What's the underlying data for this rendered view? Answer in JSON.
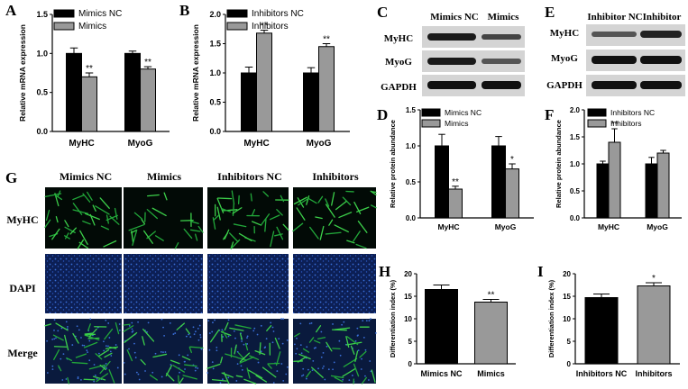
{
  "figure": {
    "panel_letters": [
      "A",
      "B",
      "C",
      "D",
      "E",
      "F",
      "G",
      "H",
      "I"
    ]
  },
  "chart_data": [
    {
      "id": "A",
      "type": "bar",
      "categories": [
        "MyHC",
        "MyoG"
      ],
      "series": [
        {
          "name": "Mimics NC",
          "values": [
            1.0,
            1.0
          ],
          "errors": [
            0.07,
            0.03
          ],
          "color": "#000000"
        },
        {
          "name": "Mimics",
          "values": [
            0.7,
            0.8
          ],
          "errors": [
            0.05,
            0.03
          ],
          "color": "#999999"
        }
      ],
      "significance": [
        [
          "",
          ""
        ],
        [
          "**",
          "**"
        ]
      ],
      "ylabel": "Relative mRNA expression",
      "ylim": [
        0,
        1.5
      ],
      "yticks": [
        "0.0",
        "0.5",
        "1.0",
        "1.5"
      ],
      "legend": "top-left"
    },
    {
      "id": "B",
      "type": "bar",
      "categories": [
        "MyHC",
        "MyoG"
      ],
      "series": [
        {
          "name": "Inhibitors NC",
          "values": [
            1.0,
            1.0
          ],
          "errors": [
            0.1,
            0.09
          ],
          "color": "#000000"
        },
        {
          "name": "Inhibitors",
          "values": [
            1.68,
            1.45
          ],
          "errors": [
            0.05,
            0.05
          ],
          "color": "#999999"
        }
      ],
      "significance": [
        [
          "",
          ""
        ],
        [
          "**",
          "**"
        ]
      ],
      "ylabel": "Relative mRNA expression",
      "ylim": [
        0,
        2.0
      ],
      "yticks": [
        "0.0",
        "0.5",
        "1.0",
        "1.5",
        "2.0"
      ],
      "legend": "top-left"
    },
    {
      "id": "D",
      "type": "bar",
      "categories": [
        "MyHC",
        "MyoG"
      ],
      "series": [
        {
          "name": "Mimics NC",
          "values": [
            1.0,
            1.0
          ],
          "errors": [
            0.16,
            0.13
          ],
          "color": "#000000"
        },
        {
          "name": "Mimics",
          "values": [
            0.4,
            0.68
          ],
          "errors": [
            0.04,
            0.07
          ],
          "color": "#999999"
        }
      ],
      "significance": [
        [
          "",
          ""
        ],
        [
          "**",
          "*"
        ]
      ],
      "ylabel": "Relative protein abundance",
      "ylim": [
        0,
        1.5
      ],
      "yticks": [
        "0.0",
        "0.5",
        "1.0",
        "1.5"
      ],
      "legend": "top-left"
    },
    {
      "id": "F",
      "type": "bar",
      "categories": [
        "MyHC",
        "MyoG"
      ],
      "series": [
        {
          "name": "Inhibitors NC",
          "values": [
            1.0,
            1.0
          ],
          "errors": [
            0.05,
            0.12
          ],
          "color": "#000000"
        },
        {
          "name": "Inhibitors",
          "values": [
            1.4,
            1.2
          ],
          "errors": [
            0.25,
            0.05
          ],
          "color": "#999999"
        }
      ],
      "significance": [
        [
          "",
          ""
        ],
        [
          "**",
          ""
        ]
      ],
      "ylabel": "Relative protein abundance",
      "ylim": [
        0,
        2.0
      ],
      "yticks": [
        "0.0",
        "0.5",
        "1.0",
        "1.5",
        "2.0"
      ],
      "legend": "top-left"
    },
    {
      "id": "H",
      "type": "bar",
      "categories": [
        "Mimics NC",
        "Mimics"
      ],
      "series": [
        {
          "name": "",
          "values": [
            16.5,
            13.7
          ],
          "errors": [
            1.0,
            0.6
          ],
          "colors": [
            "#000000",
            "#999999"
          ]
        }
      ],
      "significance": [
        [
          "",
          "**"
        ]
      ],
      "ylabel": "Differentiation index (%)",
      "ylim": [
        0,
        20
      ],
      "yticks": [
        "0",
        "5",
        "10",
        "15",
        "20"
      ]
    },
    {
      "id": "I",
      "type": "bar",
      "categories": [
        "Inhibitors NC",
        "Inhibitors"
      ],
      "series": [
        {
          "name": "",
          "values": [
            14.7,
            17.3
          ],
          "errors": [
            0.8,
            0.7
          ],
          "colors": [
            "#000000",
            "#999999"
          ]
        }
      ],
      "significance": [
        [
          "",
          "*"
        ]
      ],
      "ylabel": "Differentiation index (%)",
      "ylim": [
        0,
        20
      ],
      "yticks": [
        "0",
        "5",
        "10",
        "15",
        "20"
      ]
    }
  ],
  "blots": {
    "C": {
      "columns": [
        "Mimics NC",
        "Mimics"
      ],
      "rows": [
        "MyHC",
        "MyoG",
        "GAPDH"
      ]
    },
    "E": {
      "columns": [
        "Inhibitor NC",
        "Inhibitor"
      ],
      "rows": [
        "MyHC",
        "MyoG",
        "GAPDH"
      ]
    }
  },
  "micrographs": {
    "columns": [
      "Mimics NC",
      "Mimics",
      "Inhibitors NC",
      "Inhibitors"
    ],
    "rows": [
      "MyHC",
      "DAPI",
      "Merge"
    ]
  }
}
